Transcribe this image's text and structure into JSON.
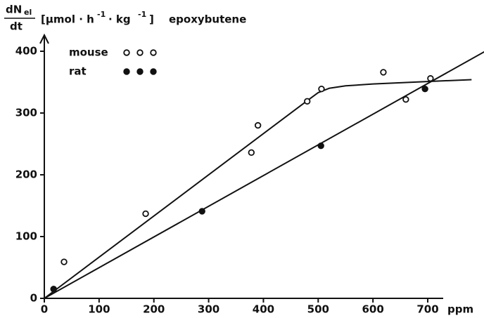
{
  "chart_data": {
    "type": "scatter",
    "y_label": {
      "numerator": "dN",
      "numerator_sub": "el",
      "denominator": "dt",
      "unit_1": "[µmol · h",
      "exp_1": "-1",
      "unit_2": "· kg",
      "exp_2": "-1",
      "unit_3": "]",
      "substance": "epoxybutene"
    },
    "x_unit": "ppm",
    "xlim": [
      0,
      800
    ],
    "ylim": [
      0,
      420
    ],
    "xticks": [
      0,
      100,
      200,
      300,
      400,
      500,
      600,
      700
    ],
    "yticks": [
      0,
      100,
      200,
      300,
      400
    ],
    "legend_symbol": "o o o",
    "series": [
      {
        "name": "mouse",
        "marker": "open",
        "color": "#111",
        "x": [
          17,
          36,
          185,
          378,
          390,
          480,
          506,
          619,
          660,
          705
        ],
        "values": [
          15,
          59,
          137,
          236,
          280,
          319,
          339,
          366,
          322,
          356
        ],
        "fit": {
          "x": [
            0,
            480,
            500,
            520,
            550,
            600,
            700,
            780
          ],
          "values": [
            0,
            320,
            333,
            340,
            344,
            347,
            351,
            354
          ]
        }
      },
      {
        "name": "rat",
        "marker": "filled",
        "color": "#111",
        "x": [
          17,
          288,
          505,
          695
        ],
        "values": [
          15,
          141,
          247,
          339
        ],
        "fit": {
          "x": [
            0,
            805
          ],
          "values": [
            0,
            400
          ]
        }
      }
    ]
  }
}
